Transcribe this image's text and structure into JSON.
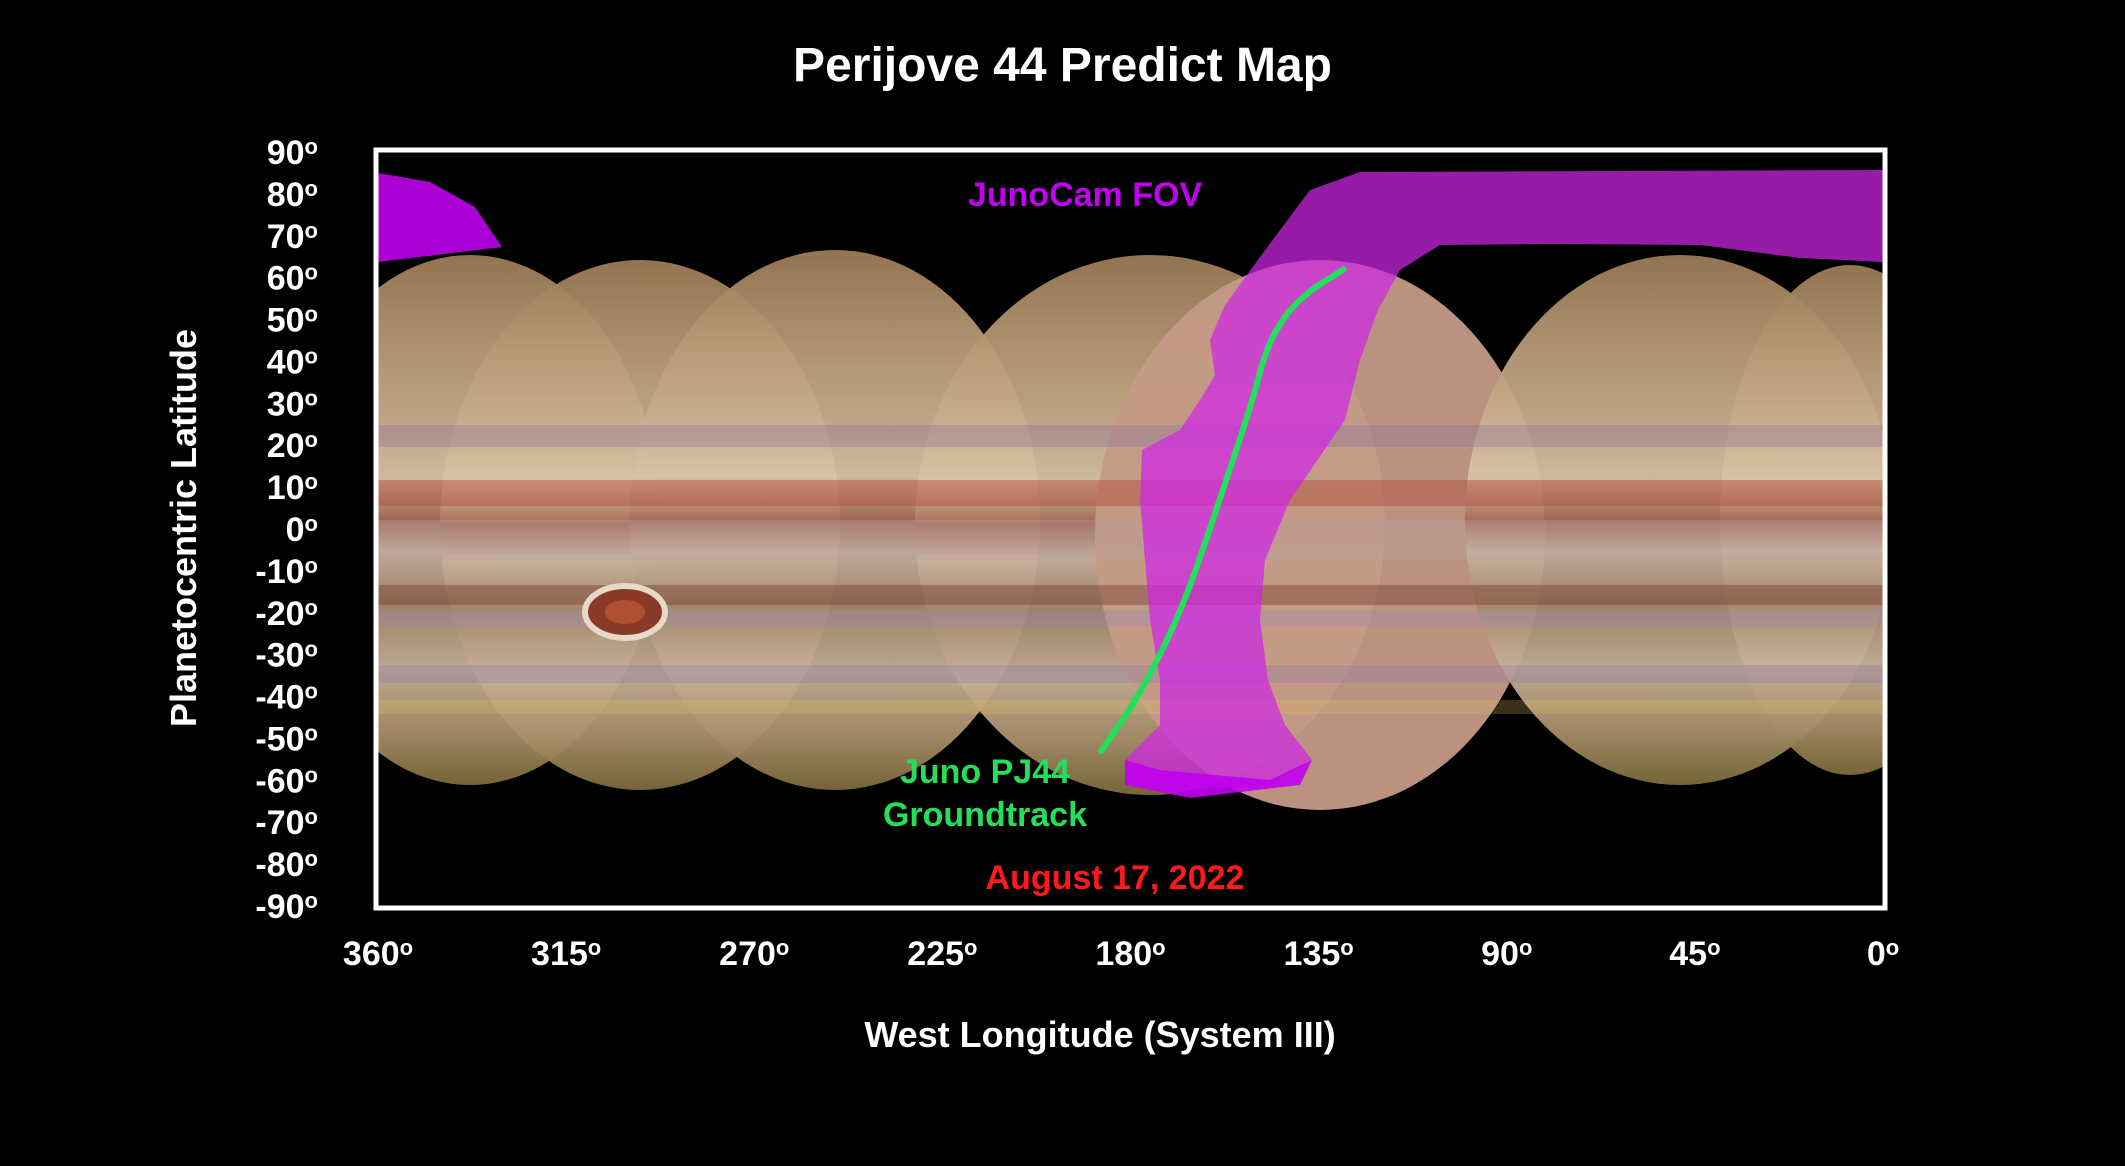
{
  "title": "Perijove 44 Predict Map",
  "x_axis": {
    "label": "West Longitude (System III)",
    "ticks": [
      360,
      315,
      270,
      225,
      180,
      135,
      90,
      45,
      0
    ],
    "range": [
      360,
      0
    ],
    "unit_suffix": "o"
  },
  "y_axis": {
    "label": "Planetocentric Latitude",
    "ticks": [
      90,
      80,
      70,
      60,
      50,
      40,
      30,
      20,
      10,
      0,
      -10,
      -20,
      -30,
      -40,
      -50,
      -60,
      -70,
      -80,
      -90
    ],
    "range": [
      -90,
      90
    ],
    "unit_suffix": "o"
  },
  "annotations": {
    "fov_label": "JunoCam FOV",
    "groundtrack_label_line1": "Juno PJ44",
    "groundtrack_label_line2": "Groundtrack",
    "date": "August 17, 2022"
  },
  "colors": {
    "fov": "#c100f0",
    "groundtrack": "#22e05a",
    "date": "#ff1a1a",
    "frame": "#ffffff",
    "background": "#000000"
  },
  "groundtrack": {
    "points": [
      [
        187,
        -53
      ],
      [
        178,
        -40
      ],
      [
        168,
        -20
      ],
      [
        161,
        0
      ],
      [
        156,
        15
      ],
      [
        151,
        30
      ],
      [
        147,
        45
      ],
      [
        140,
        55
      ],
      [
        129,
        62
      ]
    ]
  }
}
